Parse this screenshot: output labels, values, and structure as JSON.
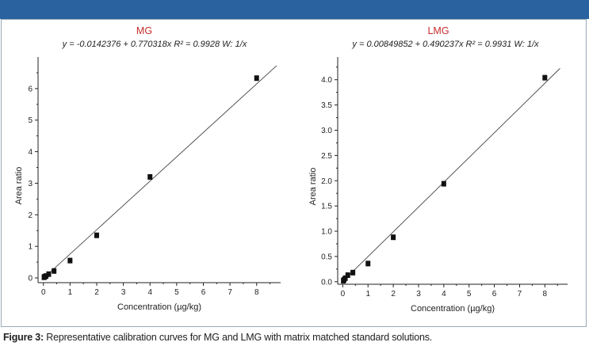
{
  "colors": {
    "banner": "#2a62a0",
    "title": "#c62b2b",
    "line": "#444444",
    "marker": "#111111"
  },
  "chart_data": [
    {
      "type": "scatter",
      "title": "MG",
      "equation": "y = -0.0142376 + 0.770318x",
      "r2": "R² = 0.9928",
      "weight": "W: 1/x",
      "xlabel": "Concentration (µg/kg)",
      "ylabel": "Area ratio",
      "xlim": [
        -0.2,
        8.9
      ],
      "ylim": [
        -0.15,
        7.0
      ],
      "xticks": [
        0,
        1,
        2,
        3,
        4,
        5,
        6,
        7,
        8
      ],
      "yticks": [
        0,
        1,
        2,
        3,
        4,
        5,
        6
      ],
      "ytick_labels": [
        "0",
        "1",
        "2",
        "3",
        "4",
        "5",
        "6"
      ],
      "fit": {
        "intercept": -0.0142376,
        "slope": 0.770318,
        "x_range": [
          0,
          8.75
        ]
      },
      "points": [
        {
          "x": 0.025,
          "y": 0.02
        },
        {
          "x": 0.05,
          "y": 0.04
        },
        {
          "x": 0.1,
          "y": 0.06
        },
        {
          "x": 0.2,
          "y": 0.12
        },
        {
          "x": 0.4,
          "y": 0.22
        },
        {
          "x": 1,
          "y": 0.55
        },
        {
          "x": 2,
          "y": 1.35
        },
        {
          "x": 4,
          "y": 3.2
        },
        {
          "x": 8,
          "y": 6.33
        }
      ]
    },
    {
      "type": "scatter",
      "title": "LMG",
      "equation": "y = 0.00849852 + 0.490237x",
      "r2": "R² = 0.9931",
      "weight": "W: 1/x",
      "xlabel": "Concentration (µg/kg)",
      "ylabel": "Area ratio",
      "xlim": [
        -0.2,
        8.9
      ],
      "ylim": [
        -0.05,
        4.45
      ],
      "xticks": [
        0,
        1,
        2,
        3,
        4,
        5,
        6,
        7,
        8
      ],
      "yticks": [
        0,
        0.5,
        1,
        1.5,
        2,
        2.5,
        3,
        3.5,
        4
      ],
      "ytick_labels": [
        "0.0",
        "0.5",
        "1.0",
        "1.5",
        "2.0",
        "2.5",
        "3.0",
        "3.5",
        "4.0"
      ],
      "fit": {
        "intercept": 0.00849852,
        "slope": 0.490237,
        "x_range": [
          0,
          8.6
        ]
      },
      "points": [
        {
          "x": 0.025,
          "y": 0.02
        },
        {
          "x": 0.05,
          "y": 0.04
        },
        {
          "x": 0.1,
          "y": 0.07
        },
        {
          "x": 0.2,
          "y": 0.13
        },
        {
          "x": 0.4,
          "y": 0.18
        },
        {
          "x": 1,
          "y": 0.36
        },
        {
          "x": 2,
          "y": 0.88
        },
        {
          "x": 4,
          "y": 1.94
        },
        {
          "x": 8,
          "y": 4.04
        }
      ]
    }
  ],
  "caption": {
    "label": "Figure 3:",
    "text": " Representative calibration curves for MG and LMG with matrix matched standard solutions."
  }
}
